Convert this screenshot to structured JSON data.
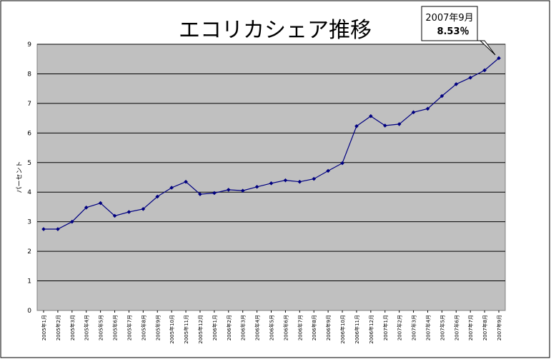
{
  "chart_data": {
    "type": "line",
    "title": "エコリカシェア推移",
    "xlabel": "",
    "ylabel": "パーセント",
    "ylim": [
      0,
      9
    ],
    "yticks": [
      "0",
      "1",
      "2",
      "3",
      "4",
      "5",
      "6",
      "7",
      "8",
      "9"
    ],
    "grid": true,
    "legend": "none",
    "colors": {
      "plot_bg": "#c0c0c0",
      "line": "#000080",
      "grid": "#000000"
    },
    "categories": [
      "2005年1月",
      "2005年2月",
      "2005年3月",
      "2005年4月",
      "2005年5月",
      "2005年6月",
      "2005年7月",
      "2005年8月",
      "2005年9月",
      "2005年10月",
      "2005年11月",
      "2005年12月",
      "2006年1月",
      "2006年2月",
      "2006年3月",
      "2006年4月",
      "2006年5月",
      "2006年6月",
      "2006年7月",
      "2006年8月",
      "2006年9月",
      "2006年10月",
      "2006年11月",
      "2006年12月",
      "2007年1月",
      "2007年2月",
      "2007年3月",
      "2007年4月",
      "2007年5月",
      "2007年6月",
      "2007年7月",
      "2007年8月",
      "2007年9月"
    ],
    "series": [
      {
        "values": [
          2.75,
          2.75,
          3.0,
          3.48,
          3.63,
          3.2,
          3.33,
          3.43,
          3.85,
          4.15,
          4.35,
          3.93,
          3.97,
          4.08,
          4.05,
          4.18,
          4.3,
          4.4,
          4.35,
          4.45,
          4.72,
          4.98,
          6.23,
          6.57,
          6.25,
          6.3,
          6.7,
          6.82,
          7.25,
          7.65,
          7.87,
          8.12,
          8.53
        ]
      }
    ],
    "annotation": {
      "line1": "2007年9月",
      "line2": "8.53％"
    }
  }
}
